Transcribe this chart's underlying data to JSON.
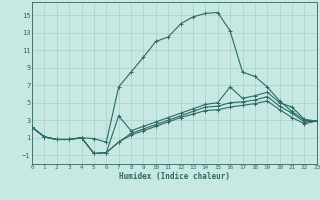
{
  "xlabel": "Humidex (Indice chaleur)",
  "bg_color": "#c8e8e4",
  "line_color": "#2a6b62",
  "grid_color": "#aacfca",
  "xlim": [
    0,
    23
  ],
  "ylim": [
    -2.0,
    16.5
  ],
  "xticks": [
    0,
    1,
    2,
    3,
    4,
    5,
    6,
    7,
    8,
    9,
    10,
    11,
    12,
    13,
    14,
    15,
    16,
    17,
    18,
    19,
    20,
    21,
    22,
    23
  ],
  "yticks": [
    -1,
    1,
    3,
    5,
    7,
    9,
    11,
    13,
    15
  ],
  "line1_y": [
    2.2,
    1.1,
    0.8,
    0.8,
    1.0,
    0.9,
    0.5,
    6.8,
    8.5,
    10.2,
    12.0,
    12.5,
    14.0,
    14.8,
    15.2,
    15.3,
    13.2,
    8.5,
    8.0,
    6.8,
    5.2,
    4.0,
    3.0,
    2.9
  ],
  "line2_y": [
    2.2,
    1.1,
    0.8,
    0.8,
    1.0,
    -0.8,
    -0.7,
    3.5,
    1.8,
    2.3,
    2.8,
    3.3,
    3.8,
    4.3,
    4.8,
    5.0,
    6.8,
    5.5,
    5.8,
    6.2,
    5.0,
    4.5,
    3.1,
    2.9
  ],
  "line3_y": [
    2.2,
    1.1,
    0.8,
    0.8,
    1.0,
    -0.8,
    -0.7,
    0.5,
    1.5,
    2.0,
    2.5,
    3.0,
    3.5,
    4.0,
    4.5,
    4.6,
    5.0,
    5.1,
    5.3,
    5.7,
    4.6,
    3.8,
    2.8,
    2.9
  ],
  "line4_y": [
    2.2,
    1.1,
    0.8,
    0.8,
    1.0,
    -0.8,
    -0.7,
    0.5,
    1.3,
    1.8,
    2.3,
    2.8,
    3.3,
    3.7,
    4.1,
    4.2,
    4.5,
    4.7,
    4.9,
    5.2,
    4.2,
    3.3,
    2.6,
    2.9
  ]
}
